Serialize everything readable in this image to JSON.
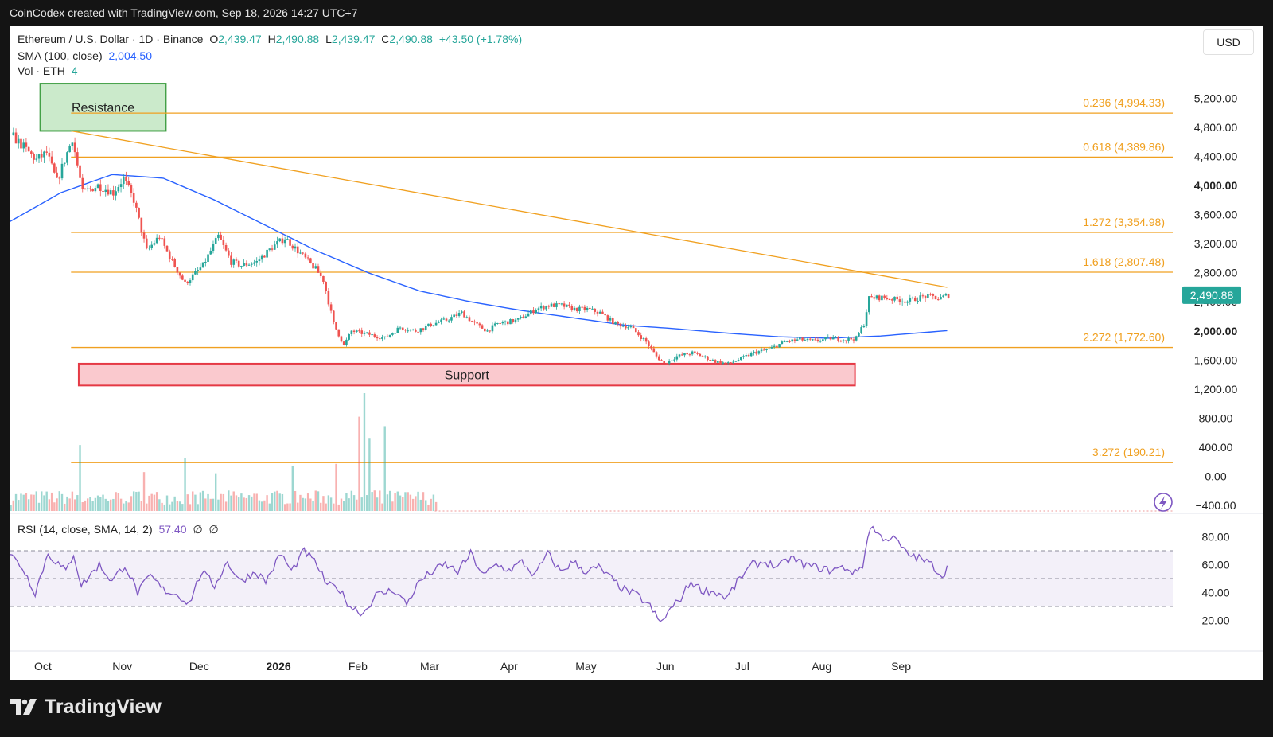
{
  "caption": "CoinCodex created with TradingView.com, Sep 18, 2026 14:27 UTC+7",
  "brand": "TradingView",
  "currency_button": "USD",
  "legend": {
    "symbol": "Ethereum / U.S. Dollar · 1D · Binance",
    "o_label": "O",
    "o_value": "2,439.47",
    "h_label": "H",
    "h_value": "2,490.88",
    "l_label": "L",
    "l_value": "2,439.47",
    "c_label": "C",
    "c_value": "2,490.88",
    "change": "+43.50 (+1.78%)",
    "sma_label": "SMA (100, close)",
    "sma_value": "2,004.50",
    "vol_label": "Vol · ETH",
    "vol_value": "4",
    "rsi_label": "RSI (14, close, SMA, 14, 2)",
    "rsi_value": "57.40",
    "rsi_na1": "∅",
    "rsi_na2": "∅"
  },
  "chart_data": {
    "type": "candlestick",
    "last_price_label": "2,490.88",
    "price_axis": [
      "5,200.00",
      "4,800.00",
      "4,400.00",
      "4,000.00",
      "3,600.00",
      "3,200.00",
      "2,800.00",
      "2,400.00",
      "2,000.00",
      "1,600.00",
      "1,200.00",
      "800.00",
      "400.00",
      "0.00",
      "−400.00"
    ],
    "price_axis_values": [
      5200,
      4800,
      4400,
      4000,
      3600,
      3200,
      2800,
      2400,
      2000,
      1600,
      1200,
      800,
      400,
      0,
      -400
    ],
    "bold_ticks": [
      "4,000.00",
      "2,000.00"
    ],
    "rsi_axis": [
      "80.00",
      "60.00",
      "40.00",
      "20.00"
    ],
    "rsi_axis_values": [
      80,
      60,
      40,
      20
    ],
    "time_axis": [
      "Oct",
      "Nov",
      "Dec",
      "2026",
      "Feb",
      "Mar",
      "Apr",
      "May",
      "Jun",
      "Jul",
      "Aug",
      "Sep"
    ],
    "time_axis_day": [
      13,
      44,
      74,
      105,
      136,
      164,
      195,
      225,
      256,
      286,
      317,
      348
    ],
    "price_anchors": [
      [
        0,
        4700
      ],
      [
        10,
        4350
      ],
      [
        14,
        4450
      ],
      [
        18,
        4050
      ],
      [
        24,
        4650
      ],
      [
        28,
        3900
      ],
      [
        34,
        4000
      ],
      [
        40,
        3900
      ],
      [
        44,
        4100
      ],
      [
        48,
        3800
      ],
      [
        53,
        3100
      ],
      [
        58,
        3300
      ],
      [
        63,
        2950
      ],
      [
        68,
        2650
      ],
      [
        75,
        2900
      ],
      [
        81,
        3300
      ],
      [
        86,
        2950
      ],
      [
        90,
        2900
      ],
      [
        96,
        2950
      ],
      [
        102,
        3150
      ],
      [
        107,
        3280
      ],
      [
        112,
        3100
      ],
      [
        119,
        2850
      ],
      [
        122,
        2700
      ],
      [
        126,
        2100
      ],
      [
        130,
        1800
      ],
      [
        133,
        2000
      ],
      [
        140,
        1950
      ],
      [
        146,
        1900
      ],
      [
        152,
        2050
      ],
      [
        158,
        2000
      ],
      [
        165,
        2100
      ],
      [
        170,
        2150
      ],
      [
        176,
        2250
      ],
      [
        181,
        2100
      ],
      [
        186,
        2000
      ],
      [
        190,
        2100
      ],
      [
        198,
        2150
      ],
      [
        205,
        2300
      ],
      [
        210,
        2350
      ],
      [
        215,
        2350
      ],
      [
        220,
        2300
      ],
      [
        225,
        2300
      ],
      [
        230,
        2250
      ],
      [
        236,
        2100
      ],
      [
        242,
        2050
      ],
      [
        248,
        1850
      ],
      [
        252,
        1650
      ],
      [
        255,
        1550
      ],
      [
        260,
        1650
      ],
      [
        266,
        1700
      ],
      [
        270,
        1650
      ],
      [
        275,
        1580
      ],
      [
        280,
        1550
      ],
      [
        285,
        1620
      ],
      [
        290,
        1700
      ],
      [
        296,
        1750
      ],
      [
        302,
        1850
      ],
      [
        308,
        1880
      ],
      [
        314,
        1860
      ],
      [
        320,
        1900
      ],
      [
        326,
        1880
      ],
      [
        330,
        1900
      ],
      [
        333,
        2100
      ],
      [
        335,
        2450
      ],
      [
        340,
        2460
      ],
      [
        346,
        2430
      ],
      [
        350,
        2410
      ],
      [
        356,
        2470
      ],
      [
        360,
        2470
      ],
      [
        362,
        2440
      ],
      [
        366,
        2491
      ]
    ],
    "sma100": {
      "day_start": 0,
      "day_end": 366,
      "anchors": [
        [
          0,
          3500
        ],
        [
          20,
          3900
        ],
        [
          40,
          4150
        ],
        [
          60,
          4100
        ],
        [
          80,
          3800
        ],
        [
          100,
          3450
        ],
        [
          120,
          3100
        ],
        [
          140,
          2800
        ],
        [
          160,
          2550
        ],
        [
          180,
          2400
        ],
        [
          200,
          2280
        ],
        [
          220,
          2180
        ],
        [
          240,
          2080
        ],
        [
          260,
          2030
        ],
        [
          280,
          1970
        ],
        [
          300,
          1920
        ],
        [
          320,
          1900
        ],
        [
          340,
          1930
        ],
        [
          366,
          2004.5
        ]
      ]
    },
    "fib_levels": [
      {
        "label": "0.236 (4,994.33)",
        "value": 4994.33
      },
      {
        "label": "0.618 (4,389.86)",
        "value": 4389.86
      },
      {
        "label": "1.272 (3,354.98)",
        "value": 3354.98
      },
      {
        "label": "1.618 (2,807.48)",
        "value": 2807.48
      },
      {
        "label": "2.272 (1,772.60)",
        "value": 1772.6
      },
      {
        "label": "3.272 (190.21)",
        "value": 190.21
      }
    ],
    "fib_day_start": 24,
    "trendline": {
      "from": [
        24,
        4750
      ],
      "to": [
        366,
        2600
      ]
    },
    "resistance_zone": {
      "label": "Resistance",
      "day_start": 12,
      "day_end": 61,
      "top": 5400,
      "bottom": 4750
    },
    "support_zone": {
      "label": "Support",
      "day_start": 27,
      "day_end": 330,
      "top": 1550,
      "bottom": 1250
    },
    "volume": {
      "day_end": 166,
      "spikes": [
        [
          27,
          560
        ],
        [
          68,
          450
        ],
        [
          52,
          330
        ],
        [
          127,
          400
        ],
        [
          136,
          800
        ],
        [
          138,
          1000
        ],
        [
          140,
          620
        ],
        [
          146,
          720
        ],
        [
          110,
          380
        ],
        [
          80,
          320
        ]
      ]
    },
    "rsi": {
      "anchors": [
        [
          0,
          68
        ],
        [
          5,
          58
        ],
        [
          10,
          40
        ],
        [
          15,
          68
        ],
        [
          22,
          55
        ],
        [
          25,
          68
        ],
        [
          28,
          45
        ],
        [
          35,
          60
        ],
        [
          40,
          48
        ],
        [
          45,
          60
        ],
        [
          50,
          40
        ],
        [
          55,
          52
        ],
        [
          60,
          42
        ],
        [
          66,
          38
        ],
        [
          70,
          32
        ],
        [
          75,
          55
        ],
        [
          80,
          45
        ],
        [
          85,
          62
        ],
        [
          90,
          48
        ],
        [
          96,
          55
        ],
        [
          100,
          48
        ],
        [
          106,
          68
        ],
        [
          110,
          55
        ],
        [
          115,
          70
        ],
        [
          120,
          60
        ],
        [
          124,
          45
        ],
        [
          128,
          44
        ],
        [
          133,
          30
        ],
        [
          138,
          25
        ],
        [
          143,
          38
        ],
        [
          150,
          42
        ],
        [
          155,
          32
        ],
        [
          160,
          48
        ],
        [
          165,
          55
        ],
        [
          170,
          60
        ],
        [
          175,
          55
        ],
        [
          180,
          68
        ],
        [
          185,
          52
        ],
        [
          190,
          60
        ],
        [
          195,
          56
        ],
        [
          200,
          62
        ],
        [
          205,
          52
        ],
        [
          210,
          68
        ],
        [
          215,
          55
        ],
        [
          220,
          62
        ],
        [
          225,
          55
        ],
        [
          230,
          58
        ],
        [
          236,
          48
        ],
        [
          240,
          42
        ],
        [
          245,
          38
        ],
        [
          250,
          30
        ],
        [
          254,
          18
        ],
        [
          258,
          28
        ],
        [
          262,
          36
        ],
        [
          266,
          48
        ],
        [
          270,
          42
        ],
        [
          276,
          40
        ],
        [
          280,
          36
        ],
        [
          285,
          50
        ],
        [
          290,
          60
        ],
        [
          295,
          62
        ],
        [
          300,
          58
        ],
        [
          305,
          65
        ],
        [
          310,
          60
        ],
        [
          315,
          58
        ],
        [
          320,
          56
        ],
        [
          326,
          58
        ],
        [
          330,
          54
        ],
        [
          333,
          60
        ],
        [
          336,
          88
        ],
        [
          340,
          80
        ],
        [
          346,
          78
        ],
        [
          350,
          68
        ],
        [
          356,
          64
        ],
        [
          360,
          60
        ],
        [
          364,
          52
        ],
        [
          366,
          57.4
        ]
      ]
    },
    "rsi_bands": {
      "upper": 70,
      "middle": 50,
      "lower": 30
    }
  }
}
